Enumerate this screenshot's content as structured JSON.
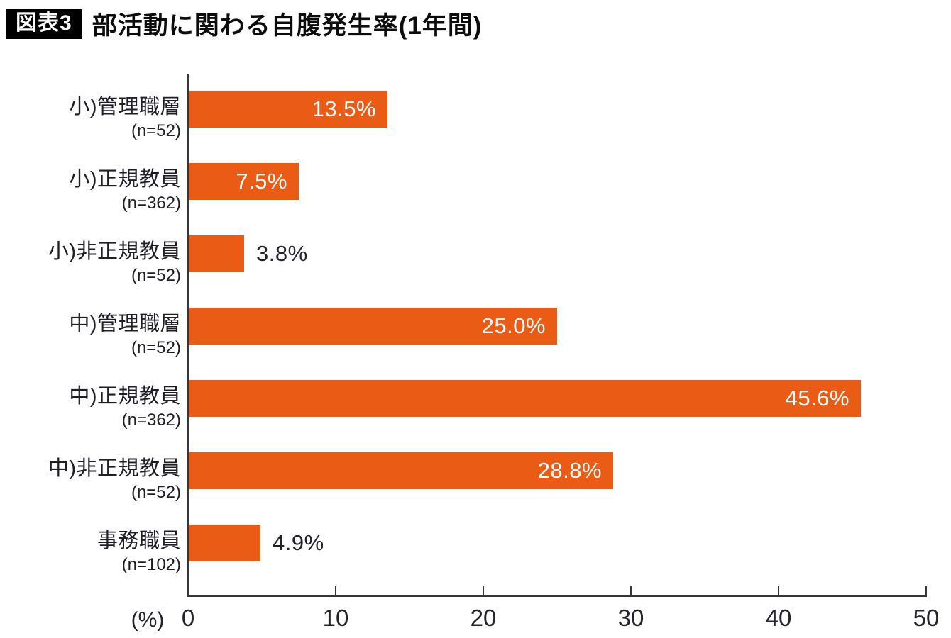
{
  "title": {
    "badge": "図表3",
    "text": "部活動に関わる自腹発生率(1年間)"
  },
  "chart_data": {
    "type": "bar",
    "orientation": "horizontal",
    "title": "部活動に関わる自腹発生率(1年間)",
    "categories": [
      "小)管理職層",
      "小)正規教員",
      "小)非正規教員",
      "中)管理職層",
      "中)正規教員",
      "中)非正規教員",
      "事務職員"
    ],
    "n_labels": [
      "(n=52)",
      "(n=362)",
      "(n=52)",
      "(n=52)",
      "(n=362)",
      "(n=52)",
      "(n=102)"
    ],
    "values": [
      13.5,
      7.5,
      3.8,
      25.0,
      45.6,
      28.8,
      4.9
    ],
    "value_labels": [
      "13.5%",
      "7.5%",
      "3.8%",
      "25.0%",
      "45.6%",
      "28.8%",
      "4.9%"
    ],
    "xlim": [
      0,
      50
    ],
    "x_ticks": [
      0,
      10,
      20,
      30,
      40,
      50
    ],
    "x_unit": "(%)",
    "grid": "off",
    "legend": "none",
    "bar_color": "#ea5b15",
    "axis_color": "#35353f",
    "label_inside_color": "#ffffff",
    "label_outside_color": "#23232b"
  }
}
